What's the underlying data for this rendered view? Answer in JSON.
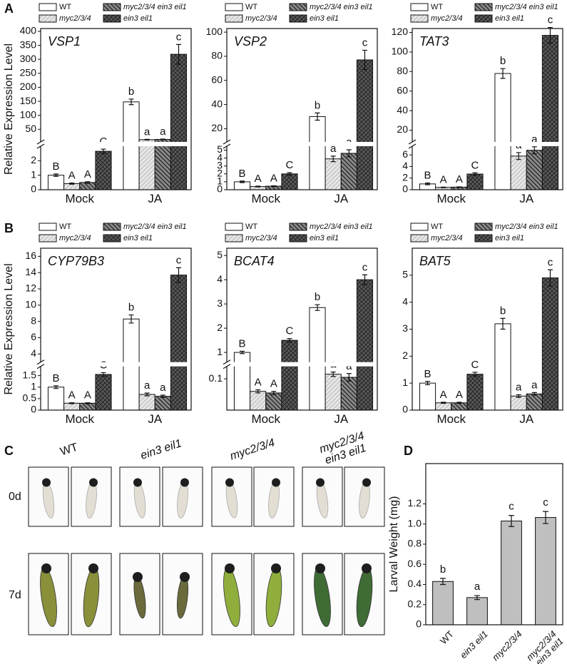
{
  "figure": {
    "panel_labels": [
      "A",
      "B",
      "C",
      "D"
    ]
  },
  "photos": {
    "columns": [
      "WT",
      "ein3 eil1",
      "myc2/3/4",
      "myc2/3/4 ein3 eil1"
    ],
    "rows": [
      "0d",
      "7d"
    ]
  },
  "chart_data": [
    {
      "type": "bar",
      "title": "VSP1",
      "y_label": "Relative Expression Level",
      "categories": [
        "Mock",
        "JA"
      ],
      "segments": [
        {
          "ylim": [
            0,
            3
          ],
          "yticks": [
            0,
            1,
            2
          ]
        },
        {
          "ylim": [
            5,
            410
          ],
          "yticks": [
            50,
            100,
            150,
            200,
            250,
            300,
            350,
            400
          ]
        }
      ],
      "series": [
        {
          "name": "WT",
          "color": "#ffffff",
          "values": [
            1.0,
            148
          ],
          "errors": [
            0.08,
            10
          ],
          "letters": [
            "B",
            "b"
          ]
        },
        {
          "name": "myc2/3/4",
          "color": "#d0d0d0",
          "values": [
            0.42,
            13
          ],
          "errors": [
            0.04,
            1.2
          ],
          "letters": [
            "A",
            "a"
          ]
        },
        {
          "name": "myc2/3/4 ein3 eil1",
          "color": "#8a8a8a",
          "values": [
            0.5,
            14
          ],
          "errors": [
            0.05,
            1.3
          ],
          "letters": [
            "A",
            "a"
          ]
        },
        {
          "name": "ein3 eil1",
          "color": "#5a5a5a",
          "values": [
            2.65,
            318
          ],
          "errors": [
            0.15,
            35
          ],
          "letters": [
            "C",
            "c"
          ]
        }
      ]
    },
    {
      "type": "bar",
      "title": "VSP2",
      "categories": [
        "Mock",
        "JA"
      ],
      "segments": [
        {
          "ylim": [
            0,
            5.5
          ],
          "yticks": [
            0,
            1,
            2,
            3,
            4,
            5
          ]
        },
        {
          "ylim": [
            9,
            103
          ],
          "yticks": [
            20,
            40,
            60,
            80,
            100
          ]
        }
      ],
      "series": [
        {
          "name": "WT",
          "color": "#ffffff",
          "values": [
            1.0,
            30
          ],
          "errors": [
            0.1,
            3
          ],
          "letters": [
            "B",
            "b"
          ]
        },
        {
          "name": "myc2/3/4",
          "color": "#d0d0d0",
          "values": [
            0.4,
            3.9
          ],
          "errors": [
            0.05,
            0.35
          ],
          "letters": [
            "A",
            "a"
          ]
        },
        {
          "name": "myc2/3/4 ein3 eil1",
          "color": "#8a8a8a",
          "values": [
            0.45,
            4.6
          ],
          "errors": [
            0.05,
            0.45
          ],
          "letters": [
            "A",
            "a"
          ]
        },
        {
          "name": "ein3 eil1",
          "color": "#5a5a5a",
          "values": [
            2.0,
            77
          ],
          "errors": [
            0.15,
            8
          ],
          "letters": [
            "C",
            "c"
          ]
        }
      ]
    },
    {
      "type": "bar",
      "title": "TAT3",
      "categories": [
        "Mock",
        "JA"
      ],
      "segments": [
        {
          "ylim": [
            0,
            7.5
          ],
          "yticks": [
            0,
            2,
            4,
            6
          ]
        },
        {
          "ylim": [
            8,
            124
          ],
          "yticks": [
            20,
            40,
            60,
            80,
            100,
            120
          ]
        }
      ],
      "series": [
        {
          "name": "WT",
          "color": "#ffffff",
          "values": [
            1.0,
            78
          ],
          "errors": [
            0.15,
            5
          ],
          "letters": [
            "B",
            "b"
          ]
        },
        {
          "name": "myc2/3/4",
          "color": "#d0d0d0",
          "values": [
            0.4,
            5.8
          ],
          "errors": [
            0.05,
            0.6
          ],
          "letters": [
            "A",
            "a"
          ]
        },
        {
          "name": "myc2/3/4 ein3 eil1",
          "color": "#8a8a8a",
          "values": [
            0.45,
            6.8
          ],
          "errors": [
            0.05,
            0.6
          ],
          "letters": [
            "A",
            "a"
          ]
        },
        {
          "name": "ein3 eil1",
          "color": "#5a5a5a",
          "values": [
            2.7,
            117
          ],
          "errors": [
            0.2,
            8
          ],
          "letters": [
            "C",
            "c"
          ]
        }
      ]
    },
    {
      "type": "bar",
      "title": "CYP79B3",
      "y_label": "Relative Expression Level",
      "categories": [
        "Mock",
        "JA"
      ],
      "segments": [
        {
          "ylim": [
            0,
            1.9
          ],
          "yticks": [
            0,
            0.5,
            1,
            1.5
          ]
        },
        {
          "ylim": [
            3,
            17
          ],
          "yticks": [
            4,
            6,
            8,
            10,
            12,
            14,
            16
          ]
        }
      ],
      "series": [
        {
          "name": "WT",
          "color": "#ffffff",
          "values": [
            1.0,
            8.3
          ],
          "errors": [
            0.06,
            0.5
          ],
          "letters": [
            "B",
            "b"
          ]
        },
        {
          "name": "myc2/3/4",
          "color": "#d0d0d0",
          "values": [
            0.3,
            0.68
          ],
          "errors": [
            0.02,
            0.06
          ],
          "letters": [
            "A",
            "a"
          ]
        },
        {
          "name": "myc2/3/4 ein3 eil1",
          "color": "#8a8a8a",
          "values": [
            0.3,
            0.6
          ],
          "errors": [
            0.02,
            0.05
          ],
          "letters": [
            "A",
            "a"
          ]
        },
        {
          "name": "ein3 eil1",
          "color": "#5a5a5a",
          "values": [
            1.55,
            13.7
          ],
          "errors": [
            0.08,
            0.9
          ],
          "letters": [
            "C",
            "c"
          ]
        }
      ]
    },
    {
      "type": "bar",
      "title": "BCAT4",
      "categories": [
        "Mock",
        "JA"
      ],
      "segments": [
        {
          "ylim": [
            0,
            0.14
          ],
          "yticks": [
            0.1
          ]
        },
        {
          "ylim": [
            0.6,
            5.3
          ],
          "yticks": [
            1,
            2,
            3,
            4,
            5
          ]
        }
      ],
      "series": [
        {
          "name": "WT",
          "color": "#ffffff",
          "values": [
            1.0,
            2.85
          ],
          "errors": [
            0.05,
            0.12
          ],
          "letters": [
            "B",
            "b"
          ]
        },
        {
          "name": "myc2/3/4",
          "color": "#d0d0d0",
          "values": [
            0.06,
            0.115
          ],
          "errors": [
            0.005,
            0.007
          ],
          "letters": [
            "A",
            "a"
          ]
        },
        {
          "name": "myc2/3/4 ein3 eil1",
          "color": "#8a8a8a",
          "values": [
            0.055,
            0.105
          ],
          "errors": [
            0.005,
            0.012
          ],
          "letters": [
            "A",
            "a"
          ]
        },
        {
          "name": "ein3 eil1",
          "color": "#5a5a5a",
          "values": [
            1.5,
            4.0
          ],
          "errors": [
            0.07,
            0.2
          ],
          "letters": [
            "C",
            "c"
          ]
        }
      ]
    },
    {
      "type": "bar",
      "title": "BAT5",
      "categories": [
        "Mock",
        "JA"
      ],
      "ylim": [
        0,
        6
      ],
      "yticks": [
        0,
        1,
        2,
        3,
        4,
        5
      ],
      "series": [
        {
          "name": "WT",
          "color": "#ffffff",
          "values": [
            1.0,
            3.2
          ],
          "errors": [
            0.06,
            0.2
          ],
          "letters": [
            "B",
            "b"
          ]
        },
        {
          "name": "myc2/3/4",
          "color": "#d0d0d0",
          "values": [
            0.27,
            0.52
          ],
          "errors": [
            0.02,
            0.05
          ],
          "letters": [
            "A",
            "a"
          ]
        },
        {
          "name": "myc2/3/4 ein3 eil1",
          "color": "#8a8a8a",
          "values": [
            0.27,
            0.6
          ],
          "errors": [
            0.02,
            0.05
          ],
          "letters": [
            "A",
            "a"
          ]
        },
        {
          "name": "ein3 eil1",
          "color": "#5a5a5a",
          "values": [
            1.33,
            4.9
          ],
          "errors": [
            0.07,
            0.3
          ],
          "letters": [
            "C",
            "c"
          ]
        }
      ]
    },
    {
      "type": "bar",
      "y_label": "Larval Weight (mg)",
      "categories": [
        "WT",
        "ein3 eil1",
        "myc2/3/4",
        "myc2/3/4 ein3 eil1"
      ],
      "values": [
        0.43,
        0.27,
        1.03,
        1.065
      ],
      "errors": [
        0.03,
        0.02,
        0.055,
        0.06
      ],
      "letters": [
        "b",
        "a",
        "c",
        "c"
      ],
      "color": "#bfbfbf",
      "ylim": [
        0,
        1.6
      ],
      "yticks": [
        0,
        0.2,
        0.4,
        0.6,
        0.8,
        {
          "value": 1,
          "label": "1.0"
        },
        1.2
      ]
    }
  ]
}
